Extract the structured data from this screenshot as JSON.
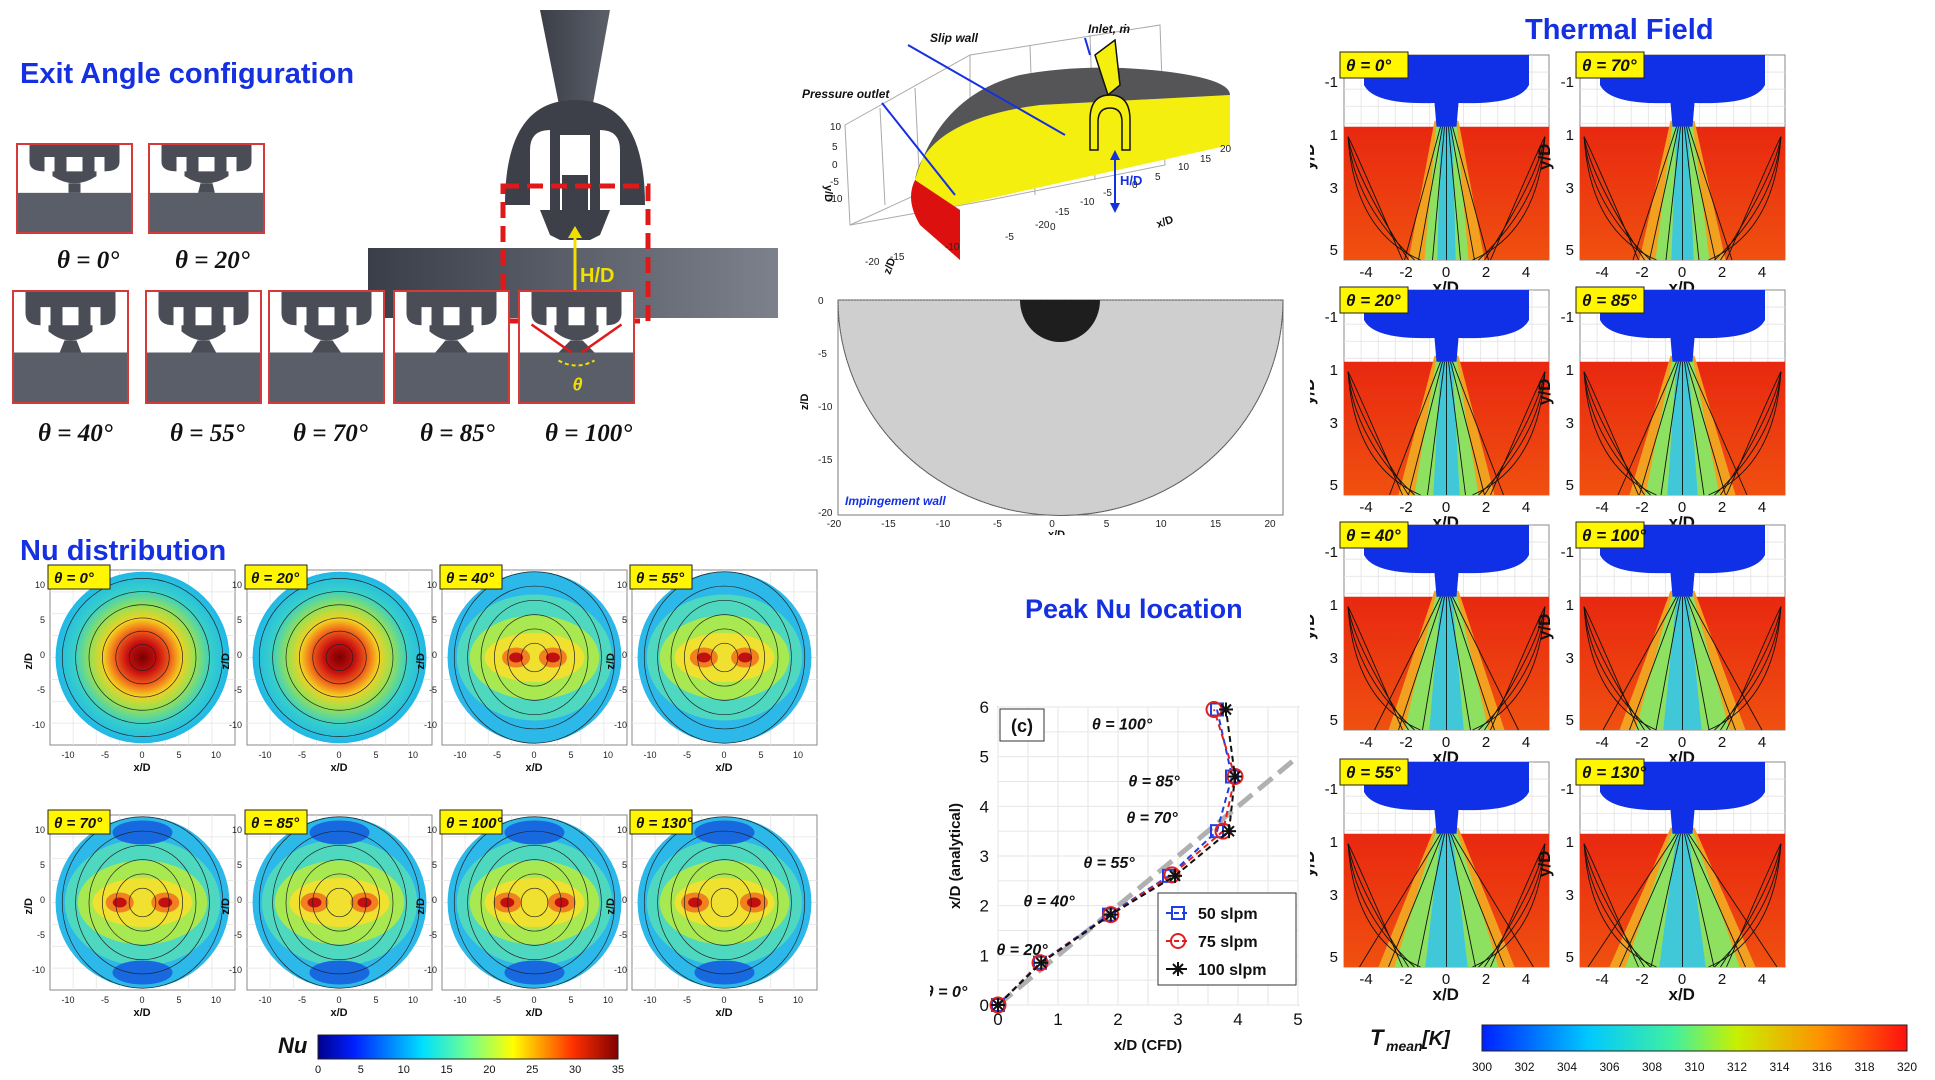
{
  "sections": {
    "exit_angle": "Exit Angle configuration",
    "nu_distribution": "Nu distribution",
    "thermal_field": "Thermal Field",
    "peak_nu": "Peak Nu location"
  },
  "geometry": {
    "hd_label": "H/D",
    "configs": [
      "θ = 0°",
      "θ = 20°",
      "θ = 40°",
      "θ = 55°",
      "θ = 70°",
      "θ = 85°",
      "θ = 100°"
    ],
    "theta_symbol": "θ"
  },
  "domain": {
    "slip_wall": "Slip wall",
    "inlet": "Inlet, ṁ",
    "pressure_outlet": "Pressure outlet",
    "hd_label": "H/D",
    "impingement_wall": "Impingement wall",
    "axis_yd": "y/D",
    "axis_zd": "z/D",
    "axis_xd": "x/D",
    "ticks_y3d": [
      "10",
      "5",
      "0",
      "-5",
      "-10"
    ],
    "ticks_z3d": [
      "-15",
      "-10",
      "-5",
      "0",
      "-20"
    ],
    "ticks_x3d": [
      "-20",
      "-15",
      "-10",
      "-5",
      "0",
      "5",
      "10",
      "15",
      "20"
    ],
    "mesh_ticks_z": [
      "0",
      "-5",
      "-10",
      "-15",
      "-20"
    ],
    "mesh_ticks_x": [
      "-20",
      "-15",
      "-10",
      "-5",
      "0",
      "5",
      "10",
      "15",
      "20"
    ]
  },
  "nu_maps": {
    "labels": [
      "θ = 0°",
      "θ = 20°",
      "θ = 40°",
      "θ = 55°",
      "θ = 70°",
      "θ = 85°",
      "θ = 100°",
      "θ = 130°"
    ],
    "axis_zd": "z/D",
    "axis_xd": "x/D",
    "ticks": [
      "10",
      "5",
      "0",
      "-5",
      "-10"
    ],
    "xticks": [
      "-10",
      "-5",
      "0",
      "5",
      "10"
    ],
    "colorbar_label": "Nu",
    "colorbar_ticks": [
      "0",
      "5",
      "10",
      "15",
      "20",
      "25",
      "30",
      "35"
    ]
  },
  "thermal_maps": {
    "labels": [
      "θ = 0°",
      "θ = 70°",
      "θ = 20°",
      "θ = 85°",
      "θ = 40°",
      "θ = 100°",
      "θ = 55°",
      "θ = 130°"
    ],
    "axis_yd": "y/D",
    "axis_xd": "x/D",
    "yticks": [
      "-1",
      "1",
      "3",
      "5"
    ],
    "xticks": [
      "-4",
      "-2",
      "0",
      "2",
      "4"
    ],
    "colorbar_label": "T",
    "colorbar_sub": "mean",
    "colorbar_unit": "[K]",
    "colorbar_ticks": [
      "300",
      "302",
      "304",
      "306",
      "308",
      "310",
      "312",
      "314",
      "316",
      "318",
      "320"
    ]
  },
  "chart_data": {
    "type": "line",
    "panel_label": "(c)",
    "xlabel": "x/D (CFD)",
    "ylabel": "x/D (analytical)",
    "xlim": [
      0,
      5
    ],
    "ylim": [
      0,
      6
    ],
    "xticks": [
      "0",
      "1",
      "2",
      "3",
      "4",
      "5"
    ],
    "yticks": [
      "0",
      "1",
      "2",
      "3",
      "4",
      "5",
      "6"
    ],
    "point_labels": [
      "θ = 0°",
      "θ = 20°",
      "θ = 40°",
      "θ = 55°",
      "θ = 70°",
      "θ = 85°",
      "θ = 100°"
    ],
    "series": [
      {
        "name": "50 slpm",
        "color": "#1f3fe0",
        "marker": "square",
        "x": [
          0,
          0.7,
          1.85,
          2.85,
          3.65,
          3.9,
          3.65
        ],
        "y": [
          0,
          0.85,
          1.82,
          2.6,
          3.5,
          4.6,
          5.95
        ]
      },
      {
        "name": "75 slpm",
        "color": "#e02020",
        "marker": "circle",
        "x": [
          0,
          0.7,
          1.88,
          2.9,
          3.75,
          3.95,
          3.6
        ],
        "y": [
          0,
          0.85,
          1.82,
          2.62,
          3.5,
          4.6,
          5.95
        ]
      },
      {
        "name": "100 slpm",
        "color": "#111111",
        "marker": "star",
        "x": [
          0,
          0.72,
          1.88,
          2.95,
          3.85,
          3.95,
          3.8
        ],
        "y": [
          0,
          0.85,
          1.82,
          2.6,
          3.5,
          4.6,
          5.95
        ]
      }
    ],
    "reference_line": {
      "x": [
        0,
        5
      ],
      "y": [
        0,
        5
      ],
      "color": "#b0b0b0"
    }
  }
}
